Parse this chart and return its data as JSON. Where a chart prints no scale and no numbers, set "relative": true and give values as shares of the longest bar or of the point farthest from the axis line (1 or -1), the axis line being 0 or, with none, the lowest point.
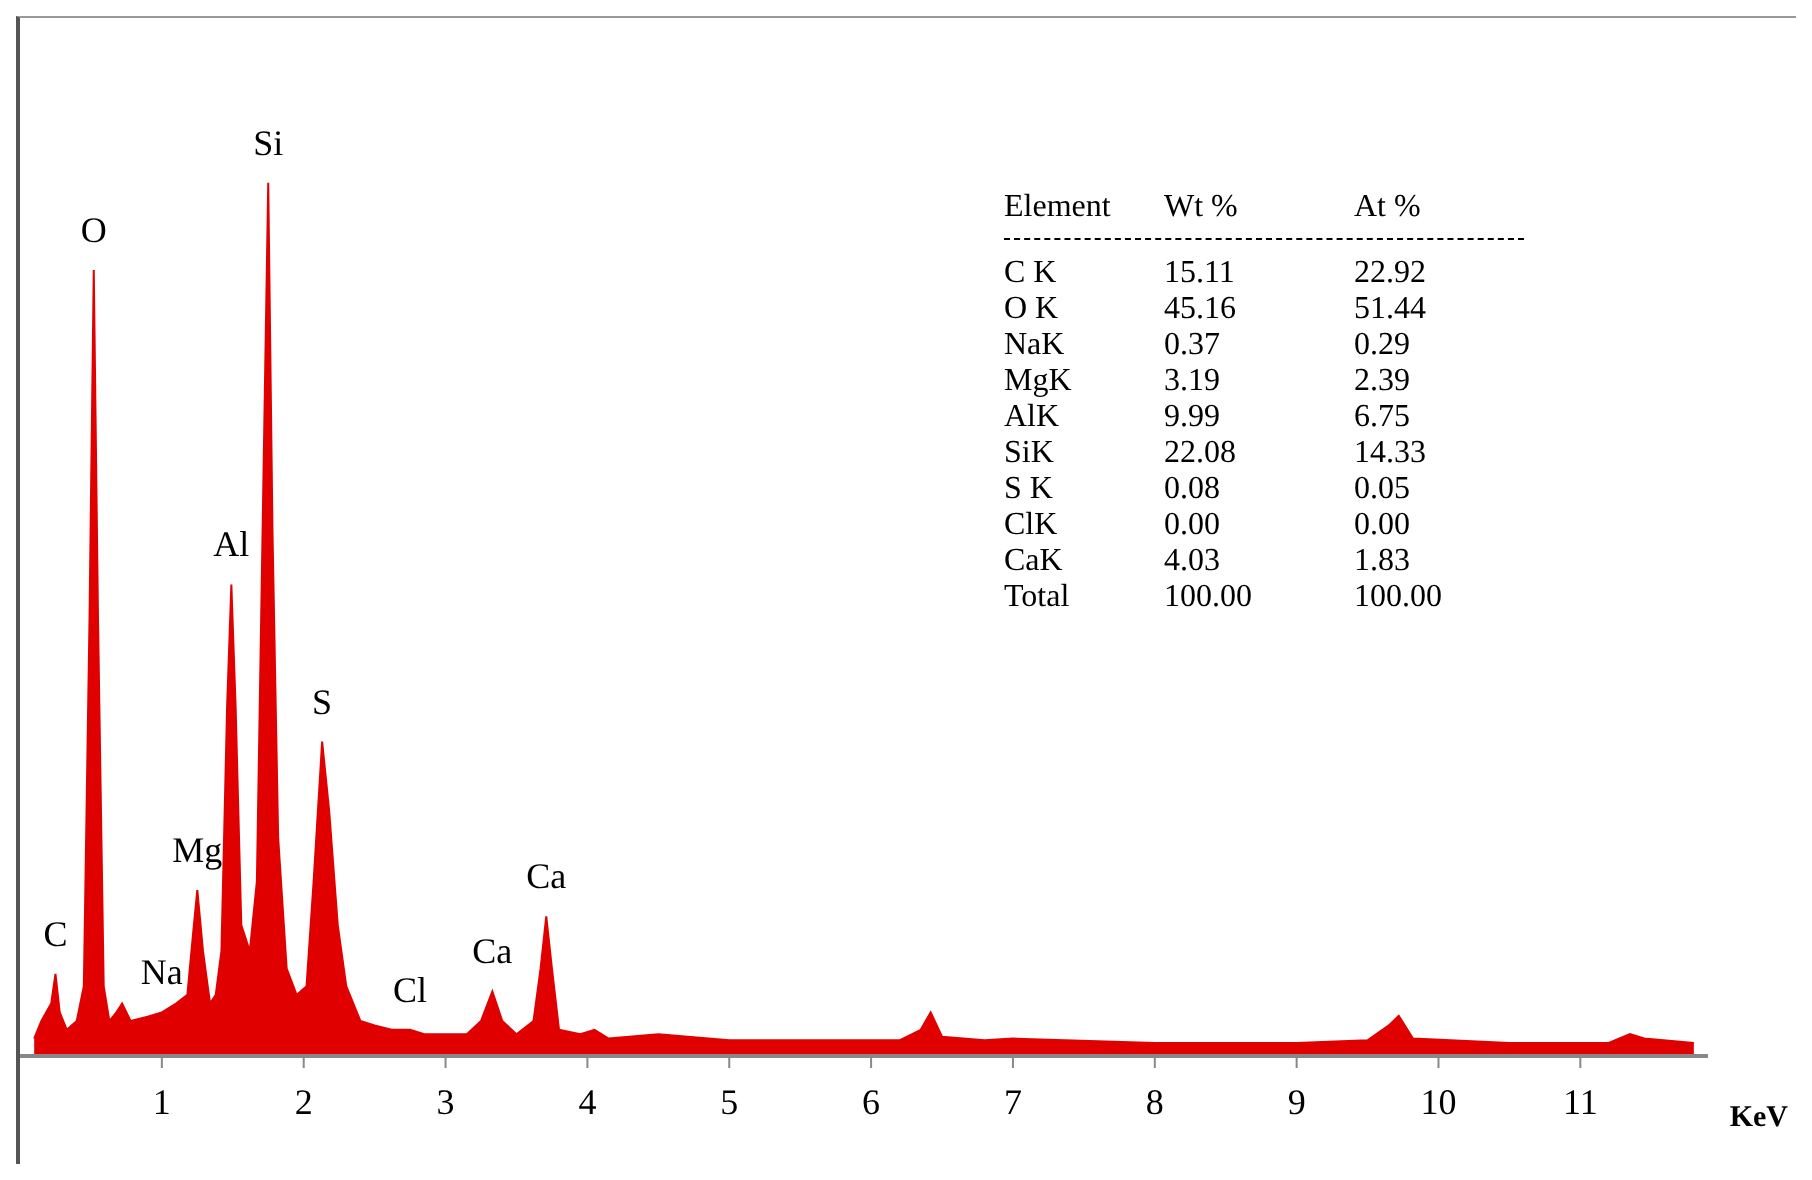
{
  "chart_data": {
    "type": "area",
    "relative": true,
    "xlabel": "KeV",
    "xlim": [
      0,
      11.9
    ],
    "xticks": [
      1,
      2,
      3,
      4,
      5,
      6,
      7,
      8,
      9,
      10,
      11
    ],
    "x": [
      0.1,
      0.15,
      0.22,
      0.25,
      0.28,
      0.33,
      0.4,
      0.45,
      0.49,
      0.52,
      0.55,
      0.59,
      0.63,
      0.68,
      0.72,
      0.78,
      0.9,
      1.0,
      1.1,
      1.18,
      1.22,
      1.25,
      1.29,
      1.34,
      1.38,
      1.42,
      1.46,
      1.49,
      1.52,
      1.56,
      1.62,
      1.67,
      1.71,
      1.75,
      1.78,
      1.82,
      1.88,
      1.95,
      2.02,
      2.07,
      2.13,
      2.18,
      2.24,
      2.3,
      2.4,
      2.5,
      2.62,
      2.75,
      2.85,
      3.0,
      3.15,
      3.25,
      3.33,
      3.4,
      3.5,
      3.62,
      3.67,
      3.71,
      3.75,
      3.8,
      3.95,
      4.05,
      4.15,
      4.5,
      5.0,
      5.5,
      6.2,
      6.35,
      6.42,
      6.5,
      6.8,
      7.0,
      8.0,
      9.0,
      9.5,
      9.65,
      9.72,
      9.82,
      10.5,
      11.2,
      11.35,
      11.45,
      11.8
    ],
    "series": [
      {
        "color": "#e00000",
        "values": [
          0.02,
          0.04,
          0.06,
          0.094,
          0.05,
          0.03,
          0.04,
          0.08,
          0.5,
          0.9,
          0.5,
          0.08,
          0.04,
          0.05,
          0.06,
          0.04,
          0.045,
          0.05,
          0.06,
          0.07,
          0.14,
          0.19,
          0.12,
          0.06,
          0.07,
          0.12,
          0.4,
          0.54,
          0.4,
          0.15,
          0.12,
          0.2,
          0.6,
          1,
          0.6,
          0.25,
          0.1,
          0.07,
          0.08,
          0.2,
          0.36,
          0.28,
          0.15,
          0.08,
          0.04,
          0.035,
          0.03,
          0.03,
          0.025,
          0.025,
          0.025,
          0.04,
          0.074,
          0.04,
          0.025,
          0.04,
          0.1,
          0.16,
          0.1,
          0.03,
          0.025,
          0.03,
          0.02,
          0.025,
          0.018,
          0.018,
          0.018,
          0.03,
          0.05,
          0.022,
          0.018,
          0.02,
          0.015,
          0.015,
          0.018,
          0.035,
          0.046,
          0.02,
          0.015,
          0.015,
          0.025,
          0.02,
          0.015
        ]
      }
    ],
    "annotations": [
      {
        "text": "C",
        "x": 0.25,
        "y": 0.094
      },
      {
        "text": "O",
        "x": 0.52,
        "y": 0.9
      },
      {
        "text": "Na",
        "x": 1.0,
        "y": 0.05
      },
      {
        "text": "Mg",
        "x": 1.25,
        "y": 0.19
      },
      {
        "text": "Al",
        "x": 1.49,
        "y": 0.54
      },
      {
        "text": "Si",
        "x": 1.75,
        "y": 1
      },
      {
        "text": "S",
        "x": 2.13,
        "y": 0.36
      },
      {
        "text": "Cl",
        "x": 2.75,
        "y": 0.03
      },
      {
        "text": "Ca",
        "x": 3.33,
        "y": 0.074
      },
      {
        "text": "Ca",
        "x": 3.71,
        "y": 0.16
      },
      "Element\tWt %\tAt %",
      "C K\t15.11\t22.92",
      "O K\t45.16\t51.44",
      "NaK\t0.37\t0.29",
      "MgK\t3.19\t2.39",
      "AlK\t9.99\t6.75",
      "SiK\t22.08\t14.33",
      "S K\t0.08\t0.05",
      "ClK\t0.00\t0.00",
      "CaK\t4.03\t1.83",
      "Total\t100.00\t100.00"
    ]
  }
}
